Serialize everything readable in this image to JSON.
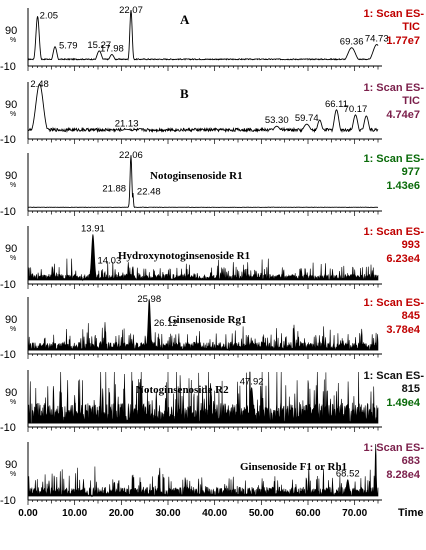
{
  "x_axis": {
    "ticks": [
      0,
      10,
      20,
      30,
      40,
      50,
      60,
      70
    ],
    "tick_labels": [
      "0.00",
      "10.00",
      "20.00",
      "30.00",
      "40.00",
      "50.00",
      "60.00",
      "70.00"
    ],
    "label": "Time",
    "range": [
      0,
      75
    ]
  },
  "y_axis": {
    "ticks": [
      90,
      -10
    ],
    "tick_labels": [
      "90",
      "-10"
    ],
    "unit": "%"
  },
  "panels": [
    {
      "id": "tic-a",
      "letter": "A",
      "title": "",
      "scan": "1: Scan ES-",
      "channel": "TIC",
      "intensity": "1.77e7",
      "scan_color": "#c00000",
      "channel_color": "#c00000",
      "intensity_color": "#c00000",
      "baseline": 5,
      "noise": 2,
      "dense": false,
      "peaks": [
        [
          2.05,
          88,
          0.35
        ],
        [
          5.79,
          30,
          0.4
        ],
        [
          15.27,
          22,
          0.5
        ],
        [
          17.98,
          15,
          0.5
        ],
        [
          22.07,
          100,
          0.25
        ],
        [
          69.36,
          28,
          0.8
        ],
        [
          74.73,
          34,
          0.8
        ]
      ],
      "labels": [
        {
          "text": "2.05",
          "x": 2.05
        },
        {
          "text": "5.79",
          "x": 5.79
        },
        {
          "text": "15.27",
          "x": 15.27
        },
        {
          "text": "17.98",
          "x": 17.98
        },
        {
          "text": "22.07",
          "x": 22.07
        },
        {
          "text": "69.36",
          "x": 69.36
        },
        {
          "text": "74.73",
          "x": 74.73
        }
      ]
    },
    {
      "id": "tic-b",
      "letter": "B",
      "title": "",
      "scan": "1: Scan ES-",
      "channel": "TIC",
      "intensity": "4.74e7",
      "scan_color": "#7b1f4b",
      "channel_color": "#7b1f4b",
      "intensity_color": "#7b1f4b",
      "baseline": 8,
      "noise": 6,
      "dense": false,
      "peaks": [
        [
          2.48,
          100,
          0.8
        ],
        [
          21.13,
          12,
          1.5
        ],
        [
          53.3,
          18,
          0.8
        ],
        [
          59.74,
          22,
          0.8
        ],
        [
          62.5,
          30,
          0.5
        ],
        [
          66.11,
          50,
          0.5
        ],
        [
          70.17,
          40,
          0.5
        ],
        [
          72.5,
          38,
          0.5
        ]
      ],
      "labels": [
        {
          "text": "2.48",
          "x": 2.48
        },
        {
          "text": "21.13",
          "x": 21.13
        },
        {
          "text": "53.30",
          "x": 53.3
        },
        {
          "text": "59.74",
          "x": 59.74
        },
        {
          "text": "66.11",
          "x": 66.11
        },
        {
          "text": "70.17",
          "x": 70.17
        }
      ]
    },
    {
      "id": "eic-977",
      "letter": "",
      "title": "Notoginsenoside R1",
      "scan": "1: Scan ES-",
      "channel": "977",
      "intensity": "1.43e6",
      "scan_color": "#0a6b0a",
      "channel_color": "#0a6b0a",
      "intensity_color": "#0a6b0a",
      "baseline": 0,
      "noise": 0.5,
      "dense": false,
      "peaks": [
        [
          22.06,
          100,
          0.18
        ],
        [
          21.88,
          42,
          0.1
        ],
        [
          22.48,
          28,
          0.1
        ]
      ],
      "labels": [
        {
          "text": "22.06",
          "x": 22.06
        },
        {
          "text": "21.88",
          "x": 21.88
        },
        {
          "text": "22.48",
          "x": 22.48
        }
      ]
    },
    {
      "id": "eic-993",
      "letter": "",
      "title": "Hydroxynotoginsenoside R1",
      "scan": "1: Scan ES-",
      "channel": "993",
      "intensity": "6.23e4",
      "scan_color": "#c00000",
      "channel_color": "#c00000",
      "intensity_color": "#c00000",
      "baseline": 0,
      "noise": 12,
      "dense": true,
      "peaks": [
        [
          13.91,
          88,
          0.3
        ],
        [
          14.03,
          40,
          0.25
        ],
        [
          5.2,
          28,
          0.1
        ],
        [
          21.5,
          35,
          0.1
        ],
        [
          22.4,
          25,
          0.1
        ]
      ],
      "labels": [
        {
          "text": "13.91",
          "x": 13.91
        },
        {
          "text": "14.03",
          "x": 14.03
        }
      ]
    },
    {
      "id": "eic-845",
      "letter": "",
      "title": "Ginsenoside Rg1",
      "scan": "1: Scan ES-",
      "channel": "845",
      "intensity": "3.78e4",
      "scan_color": "#c00000",
      "channel_color": "#c00000",
      "intensity_color": "#c00000",
      "baseline": 0,
      "noise": 16,
      "dense": true,
      "peaks": [
        [
          25.98,
          100,
          0.25
        ],
        [
          26.12,
          55,
          0.2
        ],
        [
          16.5,
          55,
          0.1
        ],
        [
          57.0,
          50,
          0.1
        ],
        [
          71.5,
          42,
          0.1
        ]
      ],
      "labels": [
        {
          "text": "25.98",
          "x": 25.98
        },
        {
          "text": "26.12",
          "x": 26.12
        }
      ]
    },
    {
      "id": "eic-815",
      "letter": "",
      "title": "Notoginsenoside R2",
      "scan": "1: Scan ES-",
      "channel": "815",
      "intensity": "1.49e4",
      "scan_color": "#111111",
      "channel_color": "#111111",
      "intensity_color": "#0a6b0a",
      "baseline": 0,
      "noise": 40,
      "dense": true,
      "peaks": [
        [
          47.92,
          70,
          0.3
        ],
        [
          16.0,
          68,
          0.1
        ],
        [
          27.5,
          62,
          0.1
        ],
        [
          10.0,
          55,
          0.1
        ],
        [
          62.0,
          52,
          0.1
        ]
      ],
      "labels": [
        {
          "text": "47.92",
          "x": 47.92
        }
      ]
    },
    {
      "id": "eic-683",
      "letter": "",
      "title": "Ginsenoside F1 or Rh1",
      "scan": "1: Scan ES-",
      "channel": "683",
      "intensity": "8.28e4",
      "scan_color": "#7b1f4b",
      "channel_color": "#7b1f4b",
      "intensity_color": "#7b1f4b",
      "baseline": 0,
      "noise": 18,
      "dense": true,
      "peaks": [
        [
          68.52,
          32,
          0.3
        ],
        [
          74.5,
          100,
          0.12
        ],
        [
          4.5,
          30,
          0.1
        ]
      ],
      "labels": [
        {
          "text": "68.52",
          "x": 68.52
        }
      ]
    }
  ]
}
